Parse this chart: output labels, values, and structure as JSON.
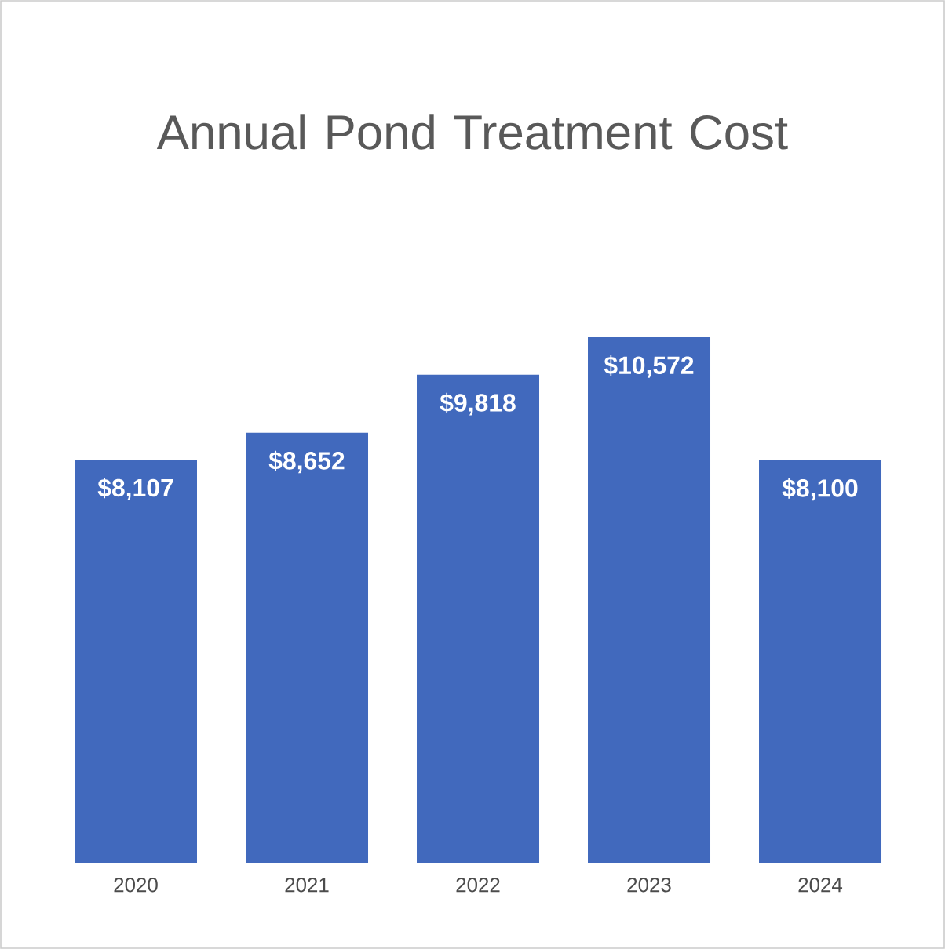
{
  "chart_data": {
    "type": "bar",
    "title": "Annual Pond Treatment Cost",
    "categories": [
      "2020",
      "2021",
      "2022",
      "2023",
      "2024"
    ],
    "values": [
      8107,
      8652,
      9818,
      10572,
      8100
    ],
    "value_labels": [
      "$8,107",
      "$8,652",
      "$9,818",
      "$10,572",
      "$8,100"
    ],
    "color": "#4169bd",
    "tick_labels": "x"
  }
}
